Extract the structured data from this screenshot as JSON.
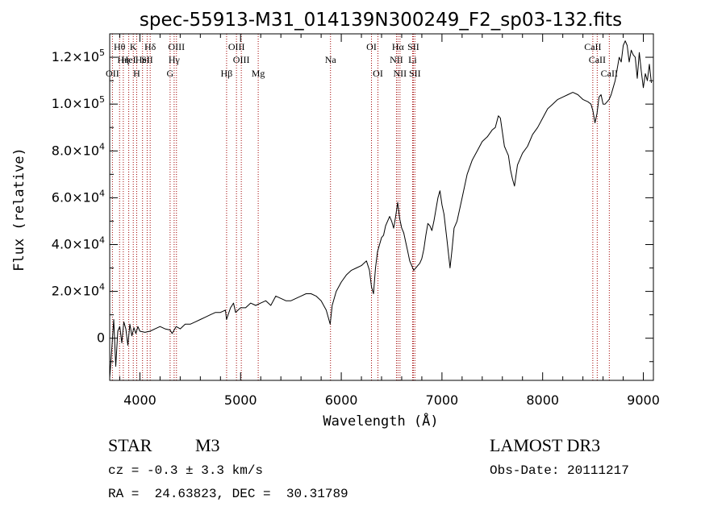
{
  "chart_data": {
    "type": "line",
    "title": "spec-55913-M31_014139N300249_F2_sp03-132.fits",
    "xlabel": "Wavelength (Å)",
    "ylabel": "Flux (relative)",
    "xlim": [
      3700,
      9100
    ],
    "ylim": [
      -18000,
      130000
    ],
    "x_ticks": [
      {
        "value": 4000,
        "label": "4000"
      },
      {
        "value": 5000,
        "label": "5000"
      },
      {
        "value": 6000,
        "label": "6000"
      },
      {
        "value": 7000,
        "label": "7000"
      },
      {
        "value": 8000,
        "label": "8000"
      },
      {
        "value": 9000,
        "label": "9000"
      }
    ],
    "y_ticks": [
      {
        "value": 0,
        "mant": "0",
        "exp": ""
      },
      {
        "value": 20000,
        "mant": "2.0×10",
        "exp": "4"
      },
      {
        "value": 40000,
        "mant": "4.0×10",
        "exp": "4"
      },
      {
        "value": 60000,
        "mant": "6.0×10",
        "exp": "4"
      },
      {
        "value": 80000,
        "mant": "8.0×10",
        "exp": "4"
      },
      {
        "value": 100000,
        "mant": "1.0×10",
        "exp": "5"
      },
      {
        "value": 120000,
        "mant": "1.2×10",
        "exp": "5"
      }
    ],
    "series": [
      {
        "name": "flux",
        "x": [
          3700,
          3720,
          3740,
          3760,
          3780,
          3800,
          3820,
          3840,
          3860,
          3880,
          3900,
          3920,
          3940,
          3960,
          3980,
          4000,
          4050,
          4100,
          4150,
          4200,
          4250,
          4300,
          4320,
          4340,
          4360,
          4400,
          4450,
          4500,
          4550,
          4600,
          4650,
          4700,
          4750,
          4800,
          4850,
          4860,
          4900,
          4930,
          4950,
          5000,
          5050,
          5100,
          5150,
          5200,
          5250,
          5300,
          5350,
          5400,
          5450,
          5500,
          5550,
          5600,
          5650,
          5700,
          5750,
          5800,
          5850,
          5890,
          5910,
          5950,
          6000,
          6050,
          6100,
          6150,
          6200,
          6250,
          6280,
          6300,
          6320,
          6340,
          6360,
          6380,
          6400,
          6420,
          6440,
          6460,
          6480,
          6500,
          6520,
          6540,
          6560,
          6580,
          6600,
          6620,
          6640,
          6660,
          6680,
          6700,
          6720,
          6740,
          6760,
          6780,
          6800,
          6820,
          6840,
          6860,
          6880,
          6900,
          6920,
          6940,
          6960,
          6980,
          7000,
          7020,
          7050,
          7080,
          7100,
          7120,
          7150,
          7200,
          7250,
          7300,
          7350,
          7400,
          7450,
          7500,
          7530,
          7560,
          7580,
          7600,
          7620,
          7640,
          7660,
          7680,
          7700,
          7720,
          7750,
          7800,
          7850,
          7900,
          7950,
          8000,
          8050,
          8100,
          8150,
          8200,
          8250,
          8300,
          8350,
          8400,
          8450,
          8480,
          8500,
          8520,
          8540,
          8560,
          8580,
          8600,
          8620,
          8640,
          8660,
          8680,
          8700,
          8720,
          8740,
          8760,
          8780,
          8800,
          8820,
          8840,
          8860,
          8880,
          8900,
          8920,
          8940,
          8960,
          8980,
          9000,
          9020,
          9040,
          9060,
          9080
        ],
        "y": [
          -17000,
          -5000,
          8000,
          -12000,
          3000,
          5000,
          -2000,
          7000,
          4000,
          -3000,
          6000,
          1000,
          4500,
          2000,
          5000,
          3000,
          2500,
          3000,
          4000,
          5000,
          4000,
          3500,
          2000,
          3500,
          5000,
          4000,
          6000,
          6000,
          7000,
          8000,
          9000,
          10000,
          11000,
          11000,
          12000,
          8000,
          13000,
          15000,
          11000,
          13000,
          13000,
          15000,
          14000,
          15000,
          16000,
          14000,
          18000,
          17000,
          16000,
          16000,
          17000,
          18000,
          19000,
          19000,
          18000,
          16000,
          12000,
          6000,
          14000,
          20000,
          24000,
          27000,
          29000,
          30000,
          31000,
          33000,
          29000,
          22000,
          19000,
          30000,
          37000,
          40000,
          43000,
          44000,
          48000,
          50000,
          52000,
          50000,
          47000,
          52000,
          58000,
          51000,
          47000,
          45000,
          41000,
          37000,
          33000,
          31000,
          29000,
          30000,
          31000,
          32000,
          34000,
          38000,
          44000,
          49000,
          48000,
          46000,
          50000,
          55000,
          60000,
          63000,
          57000,
          53000,
          42000,
          30000,
          38000,
          47000,
          50000,
          60000,
          70000,
          76000,
          80000,
          84000,
          86000,
          89000,
          90000,
          95000,
          94000,
          88000,
          82000,
          80000,
          78000,
          72000,
          68000,
          65000,
          74000,
          79000,
          82000,
          87000,
          90000,
          94000,
          98000,
          100000,
          102000,
          103000,
          104000,
          105000,
          104000,
          102000,
          101000,
          100000,
          97000,
          92000,
          96000,
          103000,
          104000,
          100000,
          100000,
          101000,
          102000,
          104000,
          107000,
          110000,
          115000,
          120000,
          118000,
          125000,
          127000,
          125000,
          118000,
          123000,
          121000,
          120000,
          111000,
          122000,
          114000,
          107000,
          113000,
          110000,
          117000,
          109000
        ]
      }
    ],
    "lines": [
      {
        "w": 3727,
        "label": "OII",
        "row": 2
      },
      {
        "w": 3798,
        "label": "Hθ",
        "row": 0
      },
      {
        "w": 3835,
        "label": "Hη",
        "row": 1
      },
      {
        "w": 3889,
        "label": "HeI",
        "row": 1
      },
      {
        "w": 3934,
        "label": "K",
        "row": 0
      },
      {
        "w": 3968,
        "label": "H",
        "row": 2
      },
      {
        "w": 4026,
        "label": "HeI",
        "row": 1
      },
      {
        "w": 4072,
        "label": "SII",
        "row": 1
      },
      {
        "w": 4102,
        "label": "Hδ",
        "row": 0
      },
      {
        "w": 4300,
        "label": "G",
        "row": 2
      },
      {
        "w": 4340,
        "label": "Hγ",
        "row": 1
      },
      {
        "w": 4363,
        "label": "OIII",
        "row": 0
      },
      {
        "w": 4861,
        "label": "Hβ",
        "row": 2
      },
      {
        "w": 4959,
        "label": "OIII",
        "row": 0
      },
      {
        "w": 5007,
        "label": "OIII",
        "row": 1
      },
      {
        "w": 5175,
        "label": "Mg",
        "row": 2
      },
      {
        "w": 5893,
        "label": "Na",
        "row": 1
      },
      {
        "w": 6300,
        "label": "OI",
        "row": 0
      },
      {
        "w": 6364,
        "label": "OI",
        "row": 2
      },
      {
        "w": 6548,
        "label": "NII",
        "row": 1
      },
      {
        "w": 6563,
        "label": "Hα",
        "row": 0
      },
      {
        "w": 6583,
        "label": "NII",
        "row": 2
      },
      {
        "w": 6708,
        "label": "Li",
        "row": 1
      },
      {
        "w": 6716,
        "label": "SII",
        "row": 0
      },
      {
        "w": 6731,
        "label": "SII",
        "row": 2
      },
      {
        "w": 8498,
        "label": "CaII",
        "row": 0
      },
      {
        "w": 8542,
        "label": "CaII",
        "row": 1
      },
      {
        "w": 8662,
        "label": "CaII",
        "row": 2
      }
    ]
  },
  "info": {
    "class": "STAR",
    "subclass": "M3",
    "survey": "LAMOST DR3",
    "cz": "cz = -0.3 ± 3.3 km/s",
    "obs_date": "Obs-Date: 20111217",
    "radec": "RA =  24.63823, DEC =  30.31789"
  },
  "colors": {
    "line_marker": "#a00000",
    "spectrum": "#000000"
  }
}
